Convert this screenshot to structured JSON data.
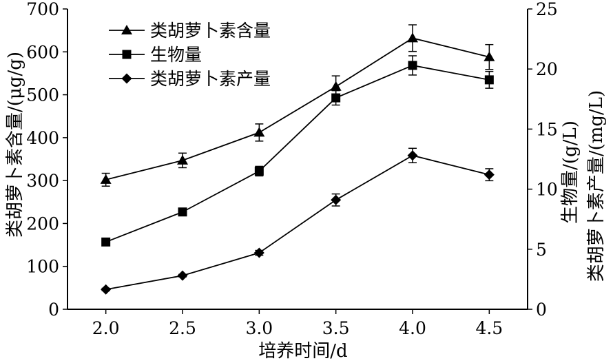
{
  "chart_data": {
    "type": "line",
    "xlabel": "培养时间/d",
    "ylabel_left": "类胡萝卜素含量/(μg/g)",
    "ylabel_right_1": "生物量/(g/L)",
    "ylabel_right_2": "类胡萝卜素产量/(mg/L)",
    "x": [
      2.0,
      2.5,
      3.0,
      3.5,
      4.0,
      4.5
    ],
    "x_tick_labels": [
      "2.0",
      "2.5",
      "3.0",
      "3.5",
      "4.0",
      "4.5"
    ],
    "xlim": [
      1.75,
      4.75
    ],
    "ylim_left": [
      0,
      700
    ],
    "ylim_right": [
      0,
      25
    ],
    "y_left_ticks": [
      "0",
      "100",
      "200",
      "300",
      "400",
      "500",
      "600",
      "700"
    ],
    "y_right_ticks": [
      "0",
      "5",
      "10",
      "15",
      "20",
      "25"
    ],
    "legend_position": "top-left",
    "series": [
      {
        "name": "类胡萝卜素含量",
        "axis": "left",
        "marker": "triangle",
        "values": [
          302,
          347,
          412,
          519,
          632,
          588
        ],
        "errors": [
          15,
          17,
          20,
          25,
          31,
          29
        ]
      },
      {
        "name": "生物量",
        "axis": "right",
        "marker": "square",
        "values": [
          5.6,
          8.1,
          11.5,
          17.6,
          20.3,
          19.1
        ],
        "errors": [
          0.2,
          0.2,
          0.4,
          0.6,
          0.8,
          0.7
        ]
      },
      {
        "name": "类胡萝卜素产量",
        "axis": "right",
        "marker": "diamond",
        "values": [
          1.65,
          2.8,
          4.7,
          9.1,
          12.8,
          11.2
        ],
        "errors": [
          0.1,
          0.1,
          0.2,
          0.5,
          0.6,
          0.5
        ]
      }
    ]
  }
}
